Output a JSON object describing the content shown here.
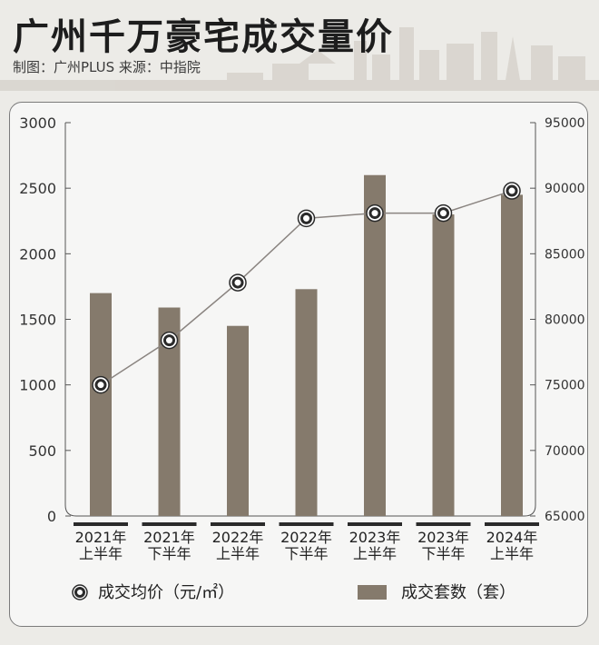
{
  "header": {
    "title": "广州千万豪宅成交量价",
    "subtitle": "制图：广州PLUS  来源：中指院"
  },
  "colors": {
    "bar": "#857a6c",
    "line": "#8a8480",
    "marker_ring": "#2a2a2a",
    "axis": "#555555"
  },
  "chart_data": {
    "type": "bar",
    "categories": [
      [
        "2021年",
        "上半年"
      ],
      [
        "2021年",
        "下半年"
      ],
      [
        "2022年",
        "上半年"
      ],
      [
        "2022年",
        "下半年"
      ],
      [
        "2023年",
        "上半年"
      ],
      [
        "2023年",
        "下半年"
      ],
      [
        "2024年",
        "上半年"
      ]
    ],
    "series": [
      {
        "name": "成交套数（套）",
        "type": "bar",
        "axis": "left",
        "values": [
          1700,
          1590,
          1450,
          1730,
          2600,
          2300,
          2450
        ]
      },
      {
        "name": "成交均价（元/㎡）",
        "type": "line",
        "axis": "right",
        "values": [
          75000,
          78400,
          82800,
          87700,
          88100,
          88100,
          89800
        ]
      }
    ],
    "y_left": {
      "ylim": [
        0,
        3000
      ],
      "ticks": [
        0,
        500,
        1000,
        1500,
        2000,
        2500,
        3000
      ]
    },
    "y_right": {
      "ylim": [
        65000,
        95000
      ],
      "ticks": [
        65000,
        70000,
        75000,
        80000,
        85000,
        90000,
        95000
      ]
    },
    "grid": false,
    "legend": "bottom"
  }
}
